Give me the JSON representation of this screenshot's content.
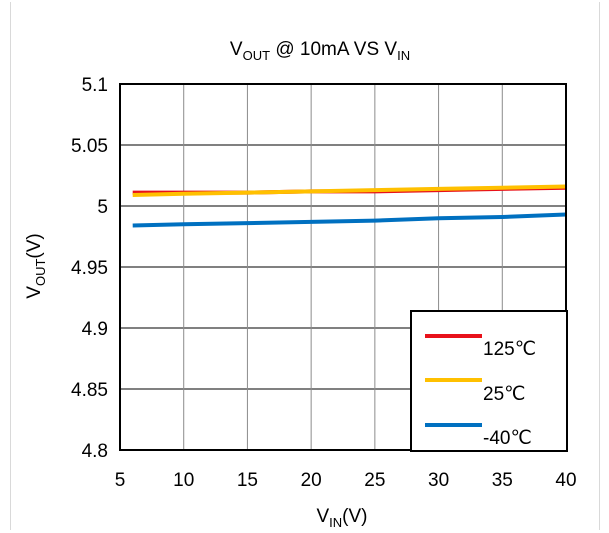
{
  "chart_data": {
    "type": "line",
    "title": {
      "main": "V",
      "sub": "OUT",
      "rest": " @ 10mA VS V",
      "sub2": "IN"
    },
    "xlabel": {
      "main": "V",
      "sub": "IN",
      "rest": "(V)"
    },
    "ylabel": {
      "main": "V",
      "sub": "OUT",
      "rest": "(V)"
    },
    "xlim": [
      5,
      40
    ],
    "ylim": [
      4.8,
      5.1
    ],
    "xticks": [
      "5",
      "10",
      "15",
      "20",
      "25",
      "30",
      "35",
      "40"
    ],
    "yticks": [
      "4.8",
      "4.85",
      "4.9",
      "4.95",
      "5",
      "5.05",
      "5.1"
    ],
    "grid": true,
    "legend_position": "bottom-right",
    "series": [
      {
        "name": "125℃",
        "color": "#e8111a",
        "x": [
          6,
          10,
          15,
          20,
          25,
          30,
          35,
          40
        ],
        "y": [
          5.011,
          5.011,
          5.011,
          5.012,
          5.012,
          5.013,
          5.014,
          5.015
        ]
      },
      {
        "name": "25℃",
        "color": "#ffc000",
        "x": [
          6,
          10,
          15,
          20,
          25,
          30,
          35,
          40
        ],
        "y": [
          5.009,
          5.01,
          5.011,
          5.012,
          5.013,
          5.014,
          5.015,
          5.016
        ]
      },
      {
        "name": "-40℃",
        "color": "#0070c0",
        "x": [
          6,
          10,
          15,
          20,
          25,
          30,
          35,
          40
        ],
        "y": [
          4.984,
          4.985,
          4.986,
          4.987,
          4.988,
          4.99,
          4.991,
          4.993
        ]
      }
    ]
  }
}
